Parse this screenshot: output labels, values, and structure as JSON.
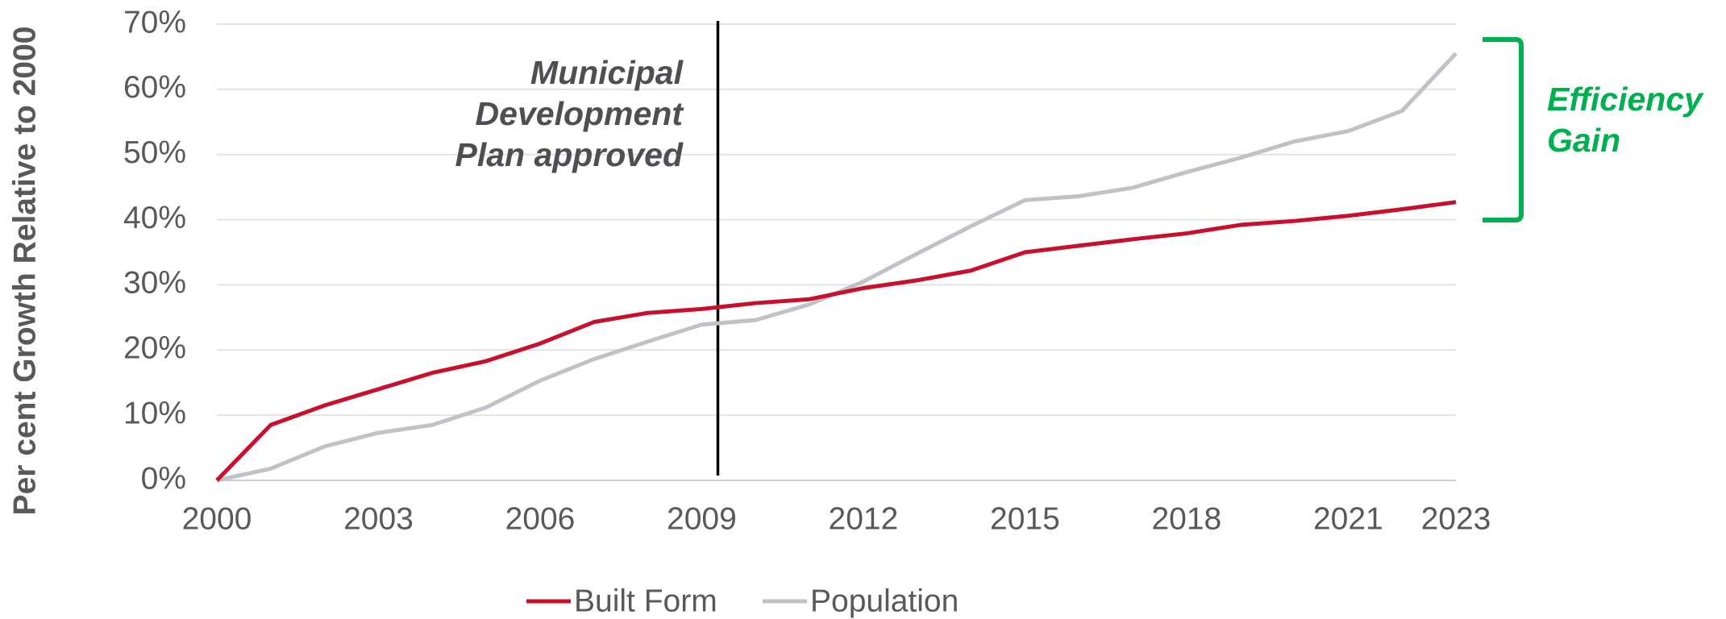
{
  "chart_data": {
    "type": "line",
    "y_label": "Per cent Growth Relative to 2000",
    "x": [
      2000,
      2001,
      2002,
      2003,
      2004,
      2005,
      2006,
      2007,
      2008,
      2009,
      2010,
      2011,
      2012,
      2013,
      2014,
      2015,
      2016,
      2017,
      2018,
      2019,
      2020,
      2021,
      2022,
      2023
    ],
    "series": [
      {
        "name": "Built Form",
        "color": "#c8102e",
        "values": [
          0,
          8.5,
          11.5,
          14,
          16.5,
          18.3,
          21,
          24.3,
          25.7,
          26.3,
          27.2,
          27.8,
          29.5,
          30.7,
          32.2,
          35,
          36,
          37,
          37.9,
          39.2,
          39.8,
          40.6,
          41.6,
          42.7
        ]
      },
      {
        "name": "Population",
        "color": "#bfc3c7",
        "values": [
          0,
          1.8,
          5.2,
          7.3,
          8.5,
          11.2,
          15.3,
          18.6,
          21.3,
          23.9,
          24.6,
          27,
          30.5,
          34.8,
          39,
          43,
          43.6,
          44.9,
          47.3,
          49.5,
          52,
          53.6,
          56.7,
          65.5
        ]
      }
    ],
    "xlim": [
      2000,
      2023
    ],
    "xticks": [
      2000,
      2003,
      2006,
      2009,
      2012,
      2015,
      2018,
      2021,
      2023
    ],
    "ylim": [
      0,
      70
    ],
    "yticks": [
      {
        "value": 0,
        "label": "0%"
      },
      {
        "value": 10,
        "label": "10%"
      },
      {
        "value": 20,
        "label": "20%"
      },
      {
        "value": 30,
        "label": "30%"
      },
      {
        "value": 40,
        "label": "40%"
      },
      {
        "value": 50,
        "label": "50%"
      },
      {
        "value": 60,
        "label": "60%"
      },
      {
        "value": 70,
        "label": "70%"
      }
    ],
    "grid": true,
    "legend": "bottom",
    "annotations": [
      {
        "x": 2009.3,
        "lines": [
          "Municipal",
          "Development",
          "Plan approved"
        ]
      },
      {
        "lines": [
          "Efficiency",
          "Gain"
        ]
      }
    ]
  }
}
